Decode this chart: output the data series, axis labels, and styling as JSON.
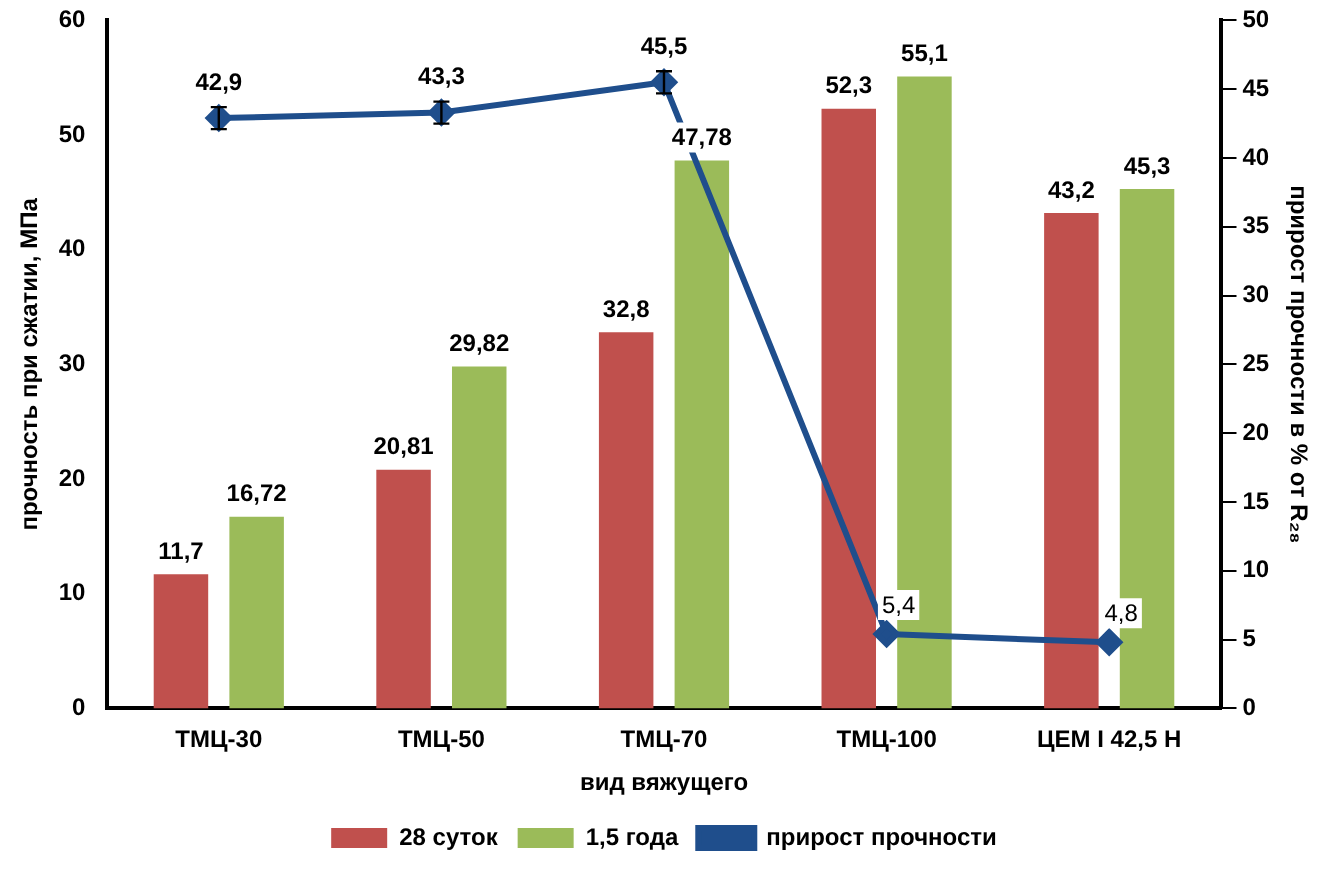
{
  "chart_data": {
    "type": "bar",
    "xlabel": "вид вяжущего",
    "ylabel": "прочность при сжатии, МПа",
    "y2label": "прирост прочности в % от R₂₈",
    "categories": [
      "ТМЦ-30",
      "ТМЦ-50",
      "ТМЦ-70",
      "ТМЦ-100",
      "ЦЕМ I 42,5 Н"
    ],
    "series": [
      {
        "name": "28 суток",
        "color": "#c0504d",
        "values": [
          11.7,
          20.81,
          32.8,
          52.3,
          43.2
        ],
        "value_labels": [
          "11,7",
          "20,81",
          "32,8",
          "52,3",
          "43,2"
        ]
      },
      {
        "name": "1,5 года",
        "color": "#9bbb59",
        "values": [
          16.72,
          29.82,
          47.78,
          55.1,
          45.3
        ],
        "value_labels": [
          "16,72",
          "29,82",
          "47,78",
          "55,1",
          "45,3"
        ]
      },
      {
        "name": "прирост прочности",
        "type": "line",
        "axis": "y2",
        "color": "#1f4e8c",
        "values": [
          42.9,
          43.3,
          45.5,
          5.4,
          4.8
        ],
        "errors": [
          0.8,
          0.8,
          0.8,
          null,
          null
        ],
        "value_labels": [
          "42,9",
          "43,3",
          "45,5",
          "5,4",
          "4,8"
        ],
        "marker": "diamond"
      }
    ],
    "ylim": [
      0,
      60
    ],
    "yticks": [
      0,
      10,
      20,
      30,
      40,
      50,
      60
    ],
    "y2lim": [
      0,
      50
    ],
    "y2ticks": [
      0,
      5,
      10,
      15,
      20,
      25,
      30,
      35,
      40,
      45,
      50
    ],
    "grid": false,
    "legend": "bottom"
  }
}
